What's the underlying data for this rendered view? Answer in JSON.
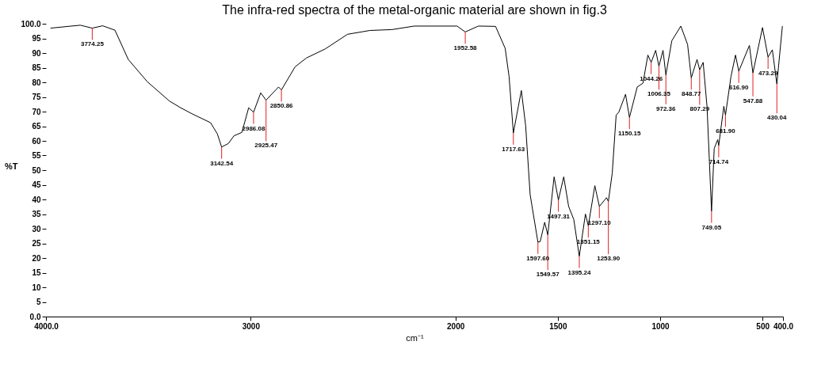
{
  "chart_data": {
    "type": "line",
    "title": "The infra-red spectra of the metal-organic material are shown in fig.3",
    "xlabel": "cm⁻¹",
    "ylabel": "%T",
    "x": [
      3978,
      3832,
      3774,
      3723,
      3663,
      3598,
      3505,
      3397,
      3342,
      3288,
      3196,
      3163,
      3142,
      3109,
      3082,
      3043,
      3010,
      2986,
      2951,
      2925,
      2864,
      2850,
      2783,
      2728,
      2636,
      2527,
      2418,
      2310,
      2201,
      1992,
      1952,
      1888,
      1804,
      1757,
      1738,
      1717,
      1678,
      1657,
      1635,
      1597,
      1586,
      1564,
      1549,
      1518,
      1497,
      1471,
      1447,
      1422,
      1395,
      1365,
      1351,
      1319,
      1297,
      1262,
      1253,
      1234,
      1215,
      1202,
      1169,
      1150,
      1112,
      1084,
      1060,
      1044,
      1022,
      1006,
      986,
      972,
      943,
      899,
      866,
      848,
      820,
      807,
      790,
      771,
      749,
      736,
      719,
      714,
      689,
      681,
      654,
      632,
      616,
      564,
      547,
      500,
      473,
      452,
      430,
      403
    ],
    "series": [
      {
        "color": "#000000",
        "values": [
          98.5,
          99.5,
          98.5,
          99.3,
          97.8,
          87.8,
          80.2,
          73.6,
          71.3,
          69.3,
          66.2,
          62.4,
          57.9,
          59.1,
          61.7,
          62.9,
          71.3,
          69.8,
          76.4,
          73.9,
          78.4,
          77.4,
          85.3,
          88.3,
          91.4,
          96.4,
          97.7,
          98.0,
          99.2,
          99.2,
          97.2,
          99.2,
          99.1,
          91.6,
          82.0,
          62.7,
          77.2,
          65.2,
          41.6,
          25.4,
          25.6,
          32.2,
          27.9,
          47.7,
          39.8,
          47.7,
          37.6,
          33.2,
          20.6,
          35.0,
          31.0,
          44.7,
          37.6,
          40.6,
          39.3,
          49.0,
          68.8,
          69.8,
          75.9,
          68.0,
          78.4,
          79.7,
          89.3,
          86.8,
          90.9,
          85.5,
          90.9,
          82.5,
          94.2,
          99.2,
          92.9,
          81.5,
          87.8,
          84.3,
          86.8,
          71.6,
          36.0,
          57.4,
          60.4,
          58.4,
          71.8,
          68.8,
          82.0,
          89.3,
          83.8,
          92.6,
          83.2,
          98.7,
          88.6,
          91.1,
          79.4,
          99.2
        ]
      }
    ],
    "xlim": [
      4000,
      400
    ],
    "xticks": [
      {
        "value": 4000,
        "label": "4000.0"
      },
      3000,
      2000,
      1500,
      1000,
      500,
      {
        "value": 400,
        "label": "400.0"
      }
    ],
    "ylim": [
      0,
      100
    ],
    "yticks": [
      {
        "value": 0,
        "label": "0.0"
      },
      5,
      10,
      15,
      20,
      25,
      30,
      35,
      40,
      45,
      50,
      55,
      60,
      65,
      70,
      75,
      80,
      85,
      90,
      95,
      {
        "value": 100,
        "label": "100.0"
      }
    ],
    "grid": false,
    "marker": "none",
    "line_style": "solid",
    "annotations": [
      {
        "text": "3774.25",
        "x": 3774,
        "y": 98.5
      },
      {
        "text": "3142.54",
        "x": 3142,
        "y": 57.9
      },
      {
        "text": "2986.08",
        "x": 2986,
        "y": 69.8
      },
      {
        "text": "2925.47",
        "x": 2925,
        "y": 73.9
      },
      {
        "text": "2850.86",
        "x": 2850,
        "y": 77.4
      },
      {
        "text": "1952.58",
        "x": 1952,
        "y": 97.2
      },
      {
        "text": "1717.63",
        "x": 1717,
        "y": 62.7
      },
      {
        "text": "1597.60",
        "x": 1597,
        "y": 25.4
      },
      {
        "text": "1549.57",
        "x": 1549,
        "y": 27.9
      },
      {
        "text": "1497.31",
        "x": 1497,
        "y": 39.8
      },
      {
        "text": "1395.24",
        "x": 1395,
        "y": 20.6
      },
      {
        "text": "1351.15",
        "x": 1351,
        "y": 31.0
      },
      {
        "text": "1297.10",
        "x": 1297,
        "y": 37.6
      },
      {
        "text": "1253.90",
        "x": 1253,
        "y": 39.3
      },
      {
        "text": "1150.15",
        "x": 1150,
        "y": 68.0
      },
      {
        "text": "1044.26",
        "x": 1044,
        "y": 86.8
      },
      {
        "text": "1006.35",
        "x": 1006,
        "y": 85.5
      },
      {
        "text": "972.36",
        "x": 972,
        "y": 82.5
      },
      {
        "text": "848.77",
        "x": 848,
        "y": 81.5
      },
      {
        "text": "807.29",
        "x": 807,
        "y": 84.3
      },
      {
        "text": "749.05",
        "x": 749,
        "y": 36.0
      },
      {
        "text": "714.74",
        "x": 714,
        "y": 58.4
      },
      {
        "text": "681.90",
        "x": 681,
        "y": 68.8
      },
      {
        "text": "616.90",
        "x": 616,
        "y": 83.8
      },
      {
        "text": "547.88",
        "x": 547,
        "y": 83.2
      },
      {
        "text": "473.29",
        "x": 473,
        "y": 88.6
      },
      {
        "text": "430.04",
        "x": 430,
        "y": 79.4
      }
    ]
  }
}
